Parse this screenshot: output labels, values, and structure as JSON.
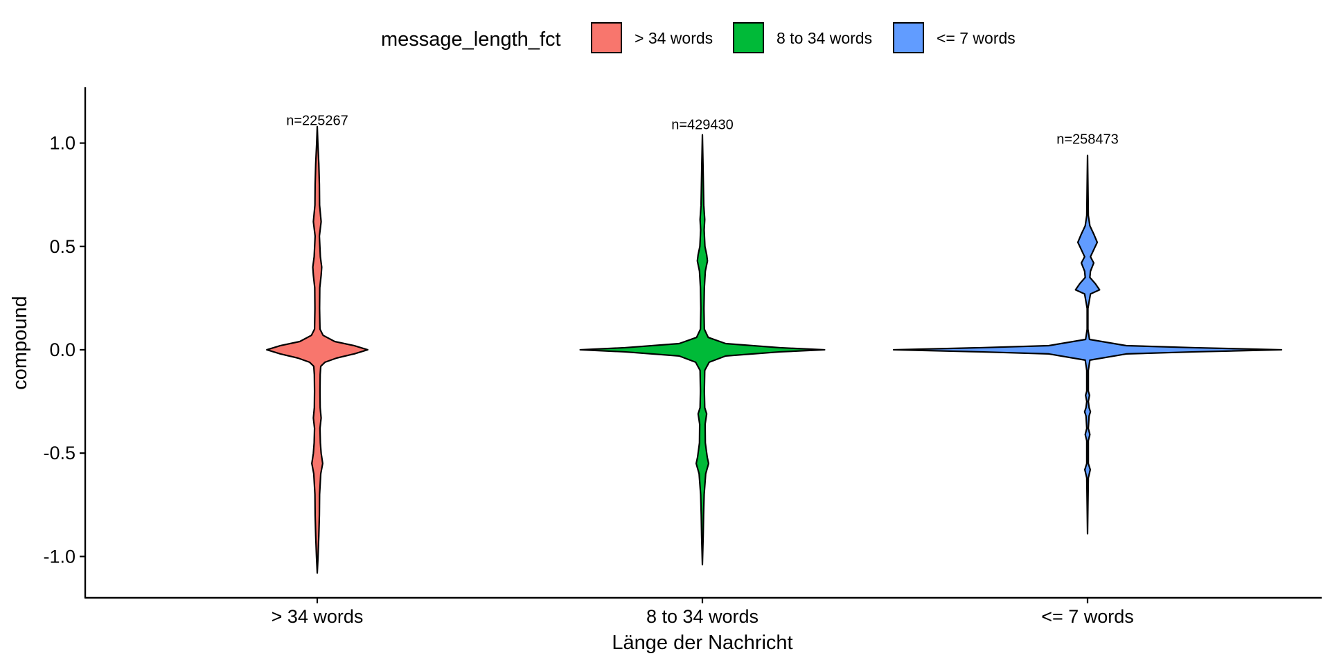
{
  "chart_data": {
    "type": "violin",
    "title": "",
    "xlabel": "Länge der Nachricht",
    "ylabel": "compound",
    "ylim": [
      -1.2,
      1.27
    ],
    "yticks": [
      1.0,
      0.5,
      0.0,
      -0.5,
      -1.0
    ],
    "ytick_labels": [
      "1.0",
      "0.5",
      "0.0",
      "-0.5",
      "-1.0"
    ],
    "grid": false,
    "legend": {
      "position": "top",
      "title": "message_length_fct",
      "entries": [
        "> 34 words",
        "8 to 34 words",
        "<= 7 words"
      ]
    },
    "categories": [
      "> 34 words",
      "8 to 34 words",
      "<= 7 words"
    ],
    "series": [
      {
        "name": "> 34 words",
        "color": "#F8766D",
        "n_label": "n=225267",
        "n_label_y": 1.11,
        "y_min": -1.08,
        "y_max": 1.08,
        "density_profile": [
          [
            1.08,
            0.0
          ],
          [
            1.0,
            0.003
          ],
          [
            0.9,
            0.008
          ],
          [
            0.8,
            0.011
          ],
          [
            0.7,
            0.012
          ],
          [
            0.62,
            0.02
          ],
          [
            0.55,
            0.011
          ],
          [
            0.45,
            0.016
          ],
          [
            0.4,
            0.023
          ],
          [
            0.36,
            0.02
          ],
          [
            0.3,
            0.013
          ],
          [
            0.2,
            0.012
          ],
          [
            0.1,
            0.014
          ],
          [
            0.07,
            0.03
          ],
          [
            0.04,
            0.09
          ],
          [
            0.02,
            0.19
          ],
          [
            0.0,
            0.26
          ],
          [
            -0.02,
            0.19
          ],
          [
            -0.04,
            0.1
          ],
          [
            -0.06,
            0.04
          ],
          [
            -0.08,
            0.018
          ],
          [
            -0.12,
            0.015
          ],
          [
            -0.2,
            0.014
          ],
          [
            -0.28,
            0.015
          ],
          [
            -0.33,
            0.02
          ],
          [
            -0.38,
            0.014
          ],
          [
            -0.45,
            0.016
          ],
          [
            -0.5,
            0.02
          ],
          [
            -0.55,
            0.028
          ],
          [
            -0.6,
            0.018
          ],
          [
            -0.7,
            0.012
          ],
          [
            -0.8,
            0.011
          ],
          [
            -0.9,
            0.008
          ],
          [
            -1.0,
            0.004
          ],
          [
            -1.08,
            0.0
          ]
        ]
      },
      {
        "name": "8 to 34 words",
        "color": "#00BA38",
        "n_label": "n=429430",
        "n_label_y": 1.09,
        "y_min": -1.04,
        "y_max": 1.04,
        "density_profile": [
          [
            1.04,
            0.0
          ],
          [
            0.9,
            0.003
          ],
          [
            0.8,
            0.005
          ],
          [
            0.7,
            0.007
          ],
          [
            0.63,
            0.012
          ],
          [
            0.58,
            0.009
          ],
          [
            0.5,
            0.013
          ],
          [
            0.46,
            0.022
          ],
          [
            0.43,
            0.026
          ],
          [
            0.38,
            0.015
          ],
          [
            0.3,
            0.01
          ],
          [
            0.2,
            0.008
          ],
          [
            0.1,
            0.01
          ],
          [
            0.06,
            0.03
          ],
          [
            0.03,
            0.12
          ],
          [
            0.01,
            0.4
          ],
          [
            0.0,
            0.63
          ],
          [
            -0.01,
            0.4
          ],
          [
            -0.03,
            0.12
          ],
          [
            -0.06,
            0.035
          ],
          [
            -0.1,
            0.012
          ],
          [
            -0.2,
            0.01
          ],
          [
            -0.28,
            0.012
          ],
          [
            -0.31,
            0.022
          ],
          [
            -0.36,
            0.014
          ],
          [
            -0.45,
            0.015
          ],
          [
            -0.52,
            0.025
          ],
          [
            -0.55,
            0.032
          ],
          [
            -0.6,
            0.017
          ],
          [
            -0.7,
            0.009
          ],
          [
            -0.8,
            0.006
          ],
          [
            -0.9,
            0.004
          ],
          [
            -1.04,
            0.0
          ]
        ]
      },
      {
        "name": "<= 7 words",
        "color": "#619CFF",
        "n_label": "n=258473",
        "n_label_y": 1.02,
        "y_min": -0.89,
        "y_max": 0.94,
        "density_profile": [
          [
            0.94,
            0.0
          ],
          [
            0.8,
            0.002
          ],
          [
            0.65,
            0.004
          ],
          [
            0.6,
            0.012
          ],
          [
            0.56,
            0.032
          ],
          [
            0.52,
            0.05
          ],
          [
            0.48,
            0.03
          ],
          [
            0.45,
            0.015
          ],
          [
            0.42,
            0.032
          ],
          [
            0.38,
            0.015
          ],
          [
            0.35,
            0.012
          ],
          [
            0.32,
            0.04
          ],
          [
            0.29,
            0.062
          ],
          [
            0.27,
            0.015
          ],
          [
            0.2,
            0.002
          ],
          [
            0.1,
            0.002
          ],
          [
            0.05,
            0.01
          ],
          [
            0.02,
            0.2
          ],
          [
            0.01,
            0.55
          ],
          [
            0.0,
            1.0
          ],
          [
            -0.01,
            0.55
          ],
          [
            -0.02,
            0.2
          ],
          [
            -0.05,
            0.012
          ],
          [
            -0.1,
            0.004
          ],
          [
            -0.2,
            0.004
          ],
          [
            -0.22,
            0.01
          ],
          [
            -0.25,
            0.004
          ],
          [
            -0.28,
            0.008
          ],
          [
            -0.3,
            0.015
          ],
          [
            -0.32,
            0.008
          ],
          [
            -0.38,
            0.004
          ],
          [
            -0.41,
            0.012
          ],
          [
            -0.44,
            0.004
          ],
          [
            -0.55,
            0.004
          ],
          [
            -0.58,
            0.014
          ],
          [
            -0.62,
            0.004
          ],
          [
            -0.75,
            0.002
          ],
          [
            -0.89,
            0.0
          ]
        ]
      }
    ]
  }
}
